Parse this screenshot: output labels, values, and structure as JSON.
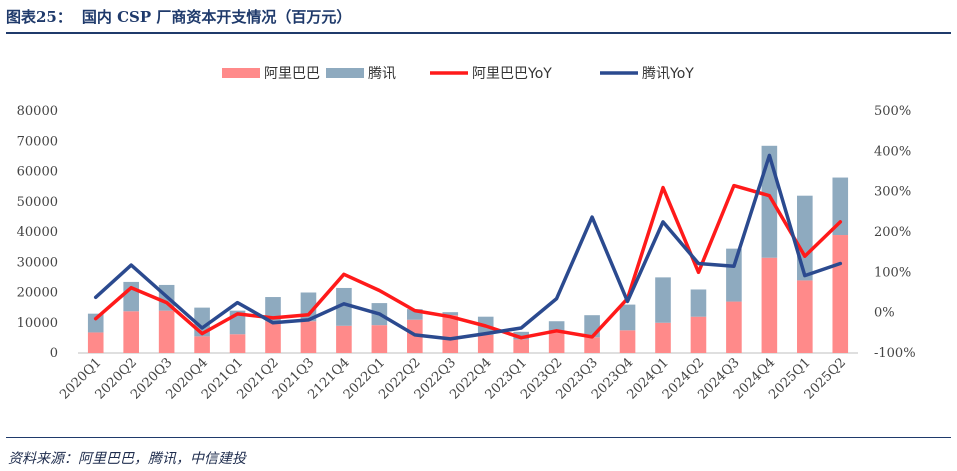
{
  "figure": {
    "number": "图表25：",
    "title": "国内 CSP 厂商资本开支情况（百万元）",
    "source": "资料来源：阿里巴巴，腾讯，中信建投"
  },
  "chart_data": {
    "type": "bar",
    "stacked": true,
    "categories": [
      "2020Q1",
      "2020Q2",
      "2020Q3",
      "2020Q4",
      "2021Q1",
      "2021Q2",
      "2021Q3",
      "2121Q4",
      "2022Q1",
      "2022Q2",
      "2022Q3",
      "2022Q4",
      "2023Q1",
      "2023Q2",
      "2023Q3",
      "2023Q4",
      "2024Q1",
      "2024Q2",
      "2024Q3",
      "2024Q4",
      "2025Q1",
      "2025Q2"
    ],
    "series": [
      {
        "name": "阿里巴巴",
        "kind": "bar",
        "axis": "left",
        "color": "#ff8a8a",
        "values": [
          6800,
          13800,
          14000,
          5500,
          6200,
          10500,
          10500,
          9000,
          9200,
          11000,
          12500,
          6000,
          4500,
          7000,
          5200,
          7500,
          10000,
          12000,
          17000,
          31500,
          24000,
          39000
        ]
      },
      {
        "name": "腾讯",
        "kind": "bar",
        "axis": "left",
        "color": "#8eaabf",
        "values": [
          6200,
          9700,
          8500,
          9500,
          7800,
          8000,
          9500,
          12500,
          7300,
          3500,
          1000,
          6000,
          2500,
          3500,
          7300,
          8500,
          15000,
          9000,
          17500,
          37000,
          28000,
          19000
        ]
      },
      {
        "name": "阿里巴巴YoY",
        "kind": "line",
        "axis": "right",
        "color": "#ff1a1a",
        "values": [
          -15,
          62,
          25,
          -52,
          -3,
          -13,
          -5,
          95,
          55,
          5,
          -10,
          -33,
          -62,
          -45,
          -60,
          35,
          310,
          100,
          315,
          290,
          140,
          225
        ]
      },
      {
        "name": "腾讯YoY",
        "kind": "line",
        "axis": "right",
        "color": "#2b4a8f",
        "values": [
          38,
          118,
          40,
          -38,
          25,
          -25,
          -18,
          22,
          -3,
          -55,
          -65,
          -52,
          -38,
          35,
          237,
          28,
          225,
          122,
          115,
          390,
          92,
          122
        ]
      }
    ],
    "y_left": {
      "min": 0,
      "max": 80000,
      "ticks": [
        "0",
        "10000",
        "20000",
        "30000",
        "40000",
        "50000",
        "60000",
        "70000",
        "80000"
      ]
    },
    "y_right": {
      "min": -100,
      "max": 500,
      "ticks": [
        "-100%",
        "0%",
        "100%",
        "200%",
        "300%",
        "400%",
        "500%"
      ]
    },
    "legend_position": "top-center",
    "grid": false
  }
}
